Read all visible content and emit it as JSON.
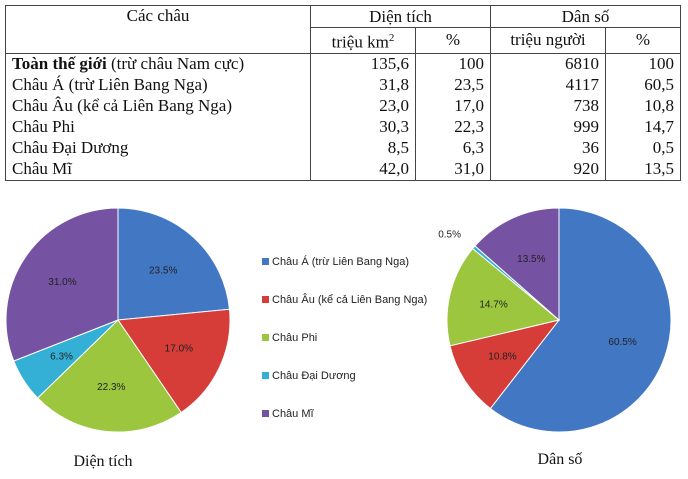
{
  "table": {
    "headers": {
      "region": "Các châu",
      "area": "Diện tích",
      "population": "Dân số"
    },
    "subheaders": {
      "area_unit": "triệu km",
      "area_unit_sup": "2",
      "area_pct": "%",
      "pop_unit": "triệu người",
      "pop_pct": "%"
    },
    "rows": [
      {
        "name_bold": "Toàn thế giới",
        "name": " (trừ châu Nam cực)",
        "area": "135,6",
        "area_pct": "100",
        "pop": "6810",
        "pop_pct": "100"
      },
      {
        "name_bold": "",
        "name": "Châu Á (trừ Liên Bang Nga)",
        "area": "31,8",
        "area_pct": "23,5",
        "pop": "4117",
        "pop_pct": "60,5"
      },
      {
        "name_bold": "",
        "name": "Châu Âu (kể cả Liên Bang Nga)",
        "area": "23,0",
        "area_pct": "17,0",
        "pop": "738",
        "pop_pct": "10,8"
      },
      {
        "name_bold": "",
        "name": "Châu Phi",
        "area": "30,3",
        "area_pct": "22,3",
        "pop": "999",
        "pop_pct": "14,7"
      },
      {
        "name_bold": "",
        "name": "Châu Đại Dương",
        "area": "8,5",
        "area_pct": "6,3",
        "pop": "36",
        "pop_pct": "0,5"
      },
      {
        "name_bold": "",
        "name": "Châu Mĩ",
        "area": "42,0",
        "area_pct": "31,0",
        "pop": "920",
        "pop_pct": "13,5"
      }
    ]
  },
  "chart_data": [
    {
      "type": "pie",
      "title": "Diện tích",
      "categories": [
        "Châu Á (trừ Liên Bang Nga)",
        "Châu Âu (kể cả Liên Bang Nga)",
        "Châu Phi",
        "Châu Đại Dương",
        "Châu Mĩ"
      ],
      "values": [
        23.5,
        17.0,
        22.3,
        6.3,
        31.0
      ],
      "labels": [
        "23.5%",
        "17.0%",
        "22.3%",
        "6.3%",
        "31.0%"
      ],
      "start": "12 o'clock, clockwise"
    },
    {
      "type": "pie",
      "title": "Dân số",
      "categories": [
        "Châu Á (trừ Liên Bang Nga)",
        "Châu Âu (kể cả Liên Bang Nga)",
        "Châu Phi",
        "Châu Đại Dương",
        "Châu Mĩ"
      ],
      "values": [
        60.5,
        10.8,
        14.7,
        0.5,
        13.5
      ],
      "labels": [
        "60.5%",
        "10.8%",
        "14.7%",
        "0.5%",
        "13.5%"
      ],
      "start": "12 o'clock, clockwise"
    }
  ],
  "legend": {
    "placement": "between charts",
    "items": [
      "Châu Á (trừ Liên Bang Nga)",
      "Châu Âu (kể cả Liên Bang Nga)",
      "Châu Phi",
      "Châu Đại Dương",
      "Châu Mĩ"
    ]
  },
  "colors": [
    "#4277c4",
    "#d63c38",
    "#9cc63e",
    "#34b0d6",
    "#7552a2"
  ]
}
